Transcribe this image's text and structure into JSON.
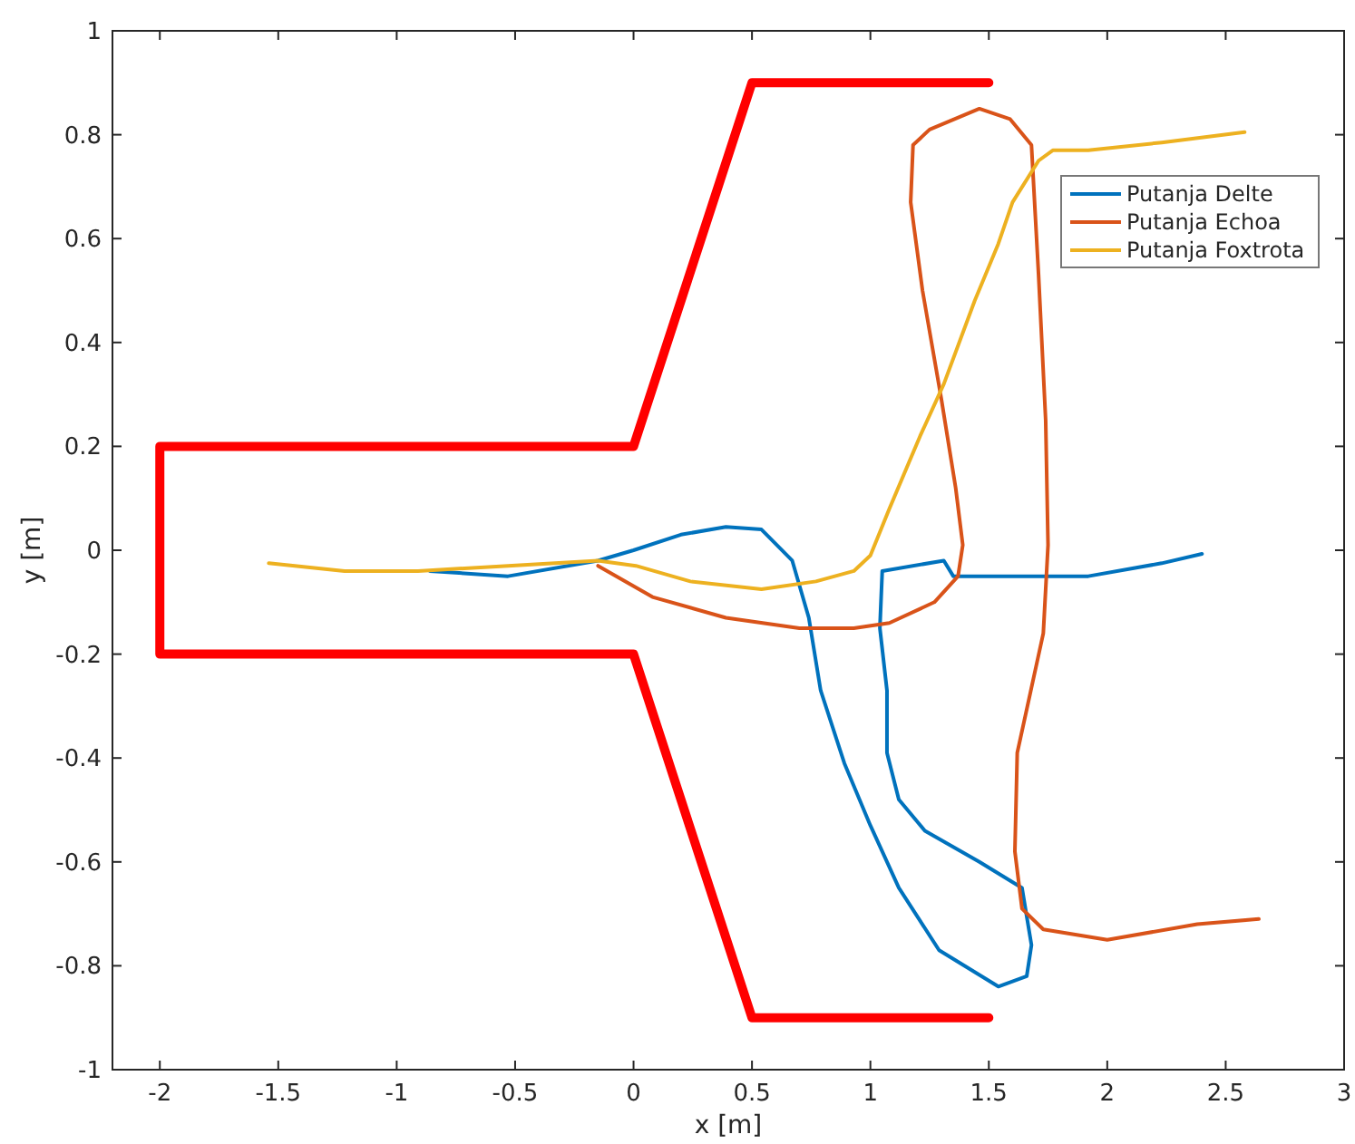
{
  "chart_data": {
    "type": "line",
    "xlabel": "x [m]",
    "ylabel": "y [m]",
    "xlim": [
      -2.2,
      3
    ],
    "ylim": [
      -1,
      1
    ],
    "xticks": [
      -2,
      -1.5,
      -1,
      -0.5,
      0,
      0.5,
      1,
      1.5,
      2,
      2.5,
      3
    ],
    "yticks": [
      -1,
      -0.8,
      -0.6,
      -0.4,
      -0.2,
      0,
      0.2,
      0.4,
      0.6,
      0.8,
      1
    ],
    "grid": false,
    "legend": "top right",
    "line_style": "solid",
    "marker": "none",
    "series": [
      {
        "color": "#ff0000",
        "x": [
          1.5,
          0.5,
          0,
          -2,
          -2,
          0,
          0.5,
          1.5
        ],
        "values": [
          0.9,
          0.9,
          0.2,
          0.2,
          -0.2,
          -0.2,
          -0.9,
          -0.9
        ]
      },
      {
        "name": "Putanja Delte",
        "color": "#0072bd",
        "x": [
          -0.86,
          -0.53,
          -0.15,
          0,
          0.2,
          0.39,
          0.54,
          0.67,
          0.74,
          0.79,
          0.89,
          1.0,
          1.12,
          1.29,
          1.54,
          1.66,
          1.68,
          1.64,
          1.46,
          1.23,
          1.12,
          1.07,
          1.07,
          1.04,
          1.05,
          1.31,
          1.35,
          1.54,
          1.92,
          2.23,
          2.4
        ],
        "values": [
          -0.04,
          -0.05,
          -0.02,
          0,
          0.03,
          0.045,
          0.04,
          -0.02,
          -0.13,
          -0.27,
          -0.41,
          -0.53,
          -0.65,
          -0.77,
          -0.84,
          -0.82,
          -0.76,
          -0.65,
          -0.6,
          -0.54,
          -0.48,
          -0.39,
          -0.27,
          -0.15,
          -0.04,
          -0.02,
          -0.05,
          -0.05,
          -0.05,
          -0.025,
          -0.007
        ]
      },
      {
        "name": "Putanja Echoa",
        "color": "#d95319",
        "x": [
          -0.15,
          0.08,
          0.39,
          0.7,
          0.93,
          1.08,
          1.27,
          1.37,
          1.39,
          1.36,
          1.3,
          1.22,
          1.17,
          1.18,
          1.25,
          1.46,
          1.59,
          1.68,
          1.71,
          1.74,
          1.75,
          1.73,
          1.62,
          1.61,
          1.64,
          1.73,
          2.0,
          2.38,
          2.64
        ],
        "values": [
          -0.03,
          -0.09,
          -0.13,
          -0.15,
          -0.15,
          -0.14,
          -0.1,
          -0.05,
          0.01,
          0.12,
          0.29,
          0.5,
          0.67,
          0.78,
          0.81,
          0.85,
          0.83,
          0.78,
          0.53,
          0.25,
          0.01,
          -0.16,
          -0.39,
          -0.58,
          -0.69,
          -0.73,
          -0.75,
          -0.72,
          -0.71
        ]
      },
      {
        "name": "Putanja Foxtrota",
        "color": "#edb120",
        "x": [
          -1.54,
          -1.22,
          -0.91,
          -0.53,
          -0.15,
          0.01,
          0.24,
          0.54,
          0.77,
          0.93,
          1.0,
          1.08,
          1.21,
          1.31,
          1.44,
          1.54,
          1.6,
          1.71,
          1.77,
          1.92,
          2.23,
          2.58
        ],
        "values": [
          -0.025,
          -0.04,
          -0.04,
          -0.03,
          -0.02,
          -0.03,
          -0.06,
          -0.075,
          -0.06,
          -0.04,
          -0.01,
          0.08,
          0.22,
          0.32,
          0.48,
          0.59,
          0.67,
          0.75,
          0.77,
          0.77,
          0.785,
          0.805
        ]
      }
    ]
  }
}
